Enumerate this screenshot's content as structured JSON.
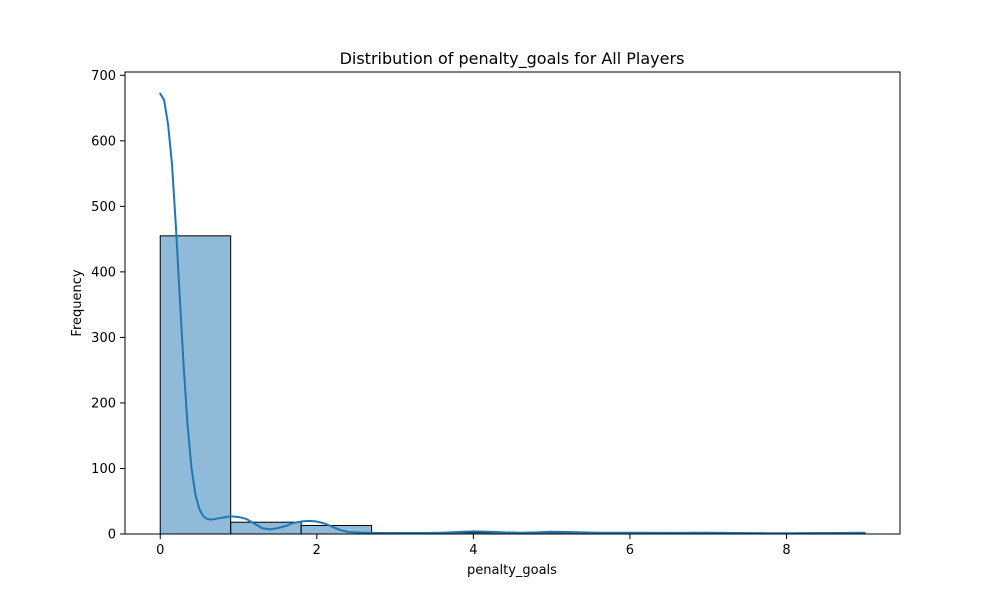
{
  "chart_data": {
    "type": "bar",
    "subtype": "histogram-with-kde",
    "title": "Distribution of penalty_goals for All Players",
    "xlabel": "penalty_goals",
    "ylabel": "Frequency",
    "xlim": [
      -0.45,
      9.45
    ],
    "ylim": [
      0,
      705
    ],
    "xticks": [
      0,
      2,
      4,
      6,
      8
    ],
    "yticks": [
      0,
      100,
      200,
      300,
      400,
      500,
      600,
      700
    ],
    "grid": false,
    "legend": "none",
    "bins": [
      {
        "start": 0.0,
        "end": 0.9,
        "count": 455
      },
      {
        "start": 0.9,
        "end": 1.8,
        "count": 18
      },
      {
        "start": 1.8,
        "end": 2.7,
        "count": 13
      },
      {
        "start": 2.7,
        "end": 3.6,
        "count": 0
      },
      {
        "start": 3.6,
        "end": 4.5,
        "count": 2
      },
      {
        "start": 4.5,
        "end": 5.4,
        "count": 2
      },
      {
        "start": 5.4,
        "end": 6.3,
        "count": 1
      },
      {
        "start": 6.3,
        "end": 7.2,
        "count": 1
      },
      {
        "start": 7.2,
        "end": 8.1,
        "count": 0
      },
      {
        "start": 8.1,
        "end": 9.0,
        "count": 1
      }
    ],
    "kde": {
      "x": [
        0,
        0.05,
        0.1,
        0.15,
        0.2,
        0.25,
        0.3,
        0.35,
        0.4,
        0.45,
        0.5,
        0.55,
        0.6,
        0.65,
        0.7,
        0.8,
        0.9,
        1.0,
        1.1,
        1.2,
        1.3,
        1.4,
        1.5,
        1.6,
        1.7,
        1.8,
        1.9,
        2.0,
        2.1,
        2.2,
        2.3,
        2.4,
        2.6,
        2.8,
        3.0,
        3.2,
        3.4,
        3.6,
        3.8,
        4.0,
        4.2,
        4.4,
        4.6,
        4.8,
        5.0,
        5.2,
        5.4,
        5.6,
        5.8,
        6.0,
        6.2,
        6.4,
        6.6,
        6.8,
        7.0,
        7.2,
        7.4,
        7.6,
        7.8,
        8.0,
        8.2,
        8.4,
        8.6,
        8.8,
        9.0
      ],
      "y": [
        672,
        662,
        625,
        565,
        470,
        360,
        255,
        165,
        100,
        60,
        38,
        27,
        23,
        22,
        23,
        25,
        27,
        26,
        23,
        16,
        9,
        7,
        9,
        12,
        17,
        19,
        20,
        19,
        16,
        11,
        6,
        3,
        2,
        1.5,
        1.5,
        1.5,
        1.5,
        2,
        3,
        4,
        3.5,
        2.5,
        2,
        2.5,
        3.5,
        3,
        2.5,
        2,
        2,
        2,
        2,
        1.8,
        1.8,
        2,
        2,
        1.8,
        1.5,
        1.3,
        1.2,
        1.2,
        1.3,
        1.5,
        1.6,
        1.8,
        2
      ]
    },
    "colors": {
      "bar_fill": "#1f77b4",
      "bar_fill_opacity": 0.5,
      "bar_edge": "#000000",
      "kde_line": "#1f77b4",
      "axes": "#000000"
    }
  }
}
